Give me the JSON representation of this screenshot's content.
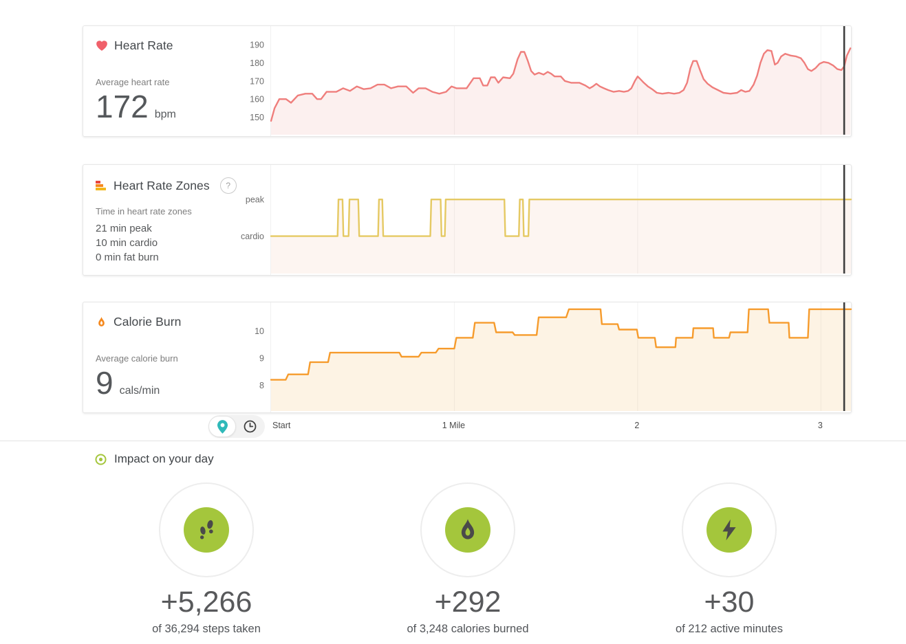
{
  "panels": {
    "heart_rate": {
      "title": "Heart Rate",
      "stat_label": "Average heart rate",
      "stat_value": "172",
      "stat_unit": "bpm"
    },
    "heart_rate_zones": {
      "title": "Heart Rate Zones",
      "help_label": "?",
      "stat_label": "Time in heart rate zones",
      "zone_lines": [
        "21 min peak",
        "10 min cardio",
        "0 min fat burn"
      ]
    },
    "calorie_burn": {
      "title": "Calorie Burn",
      "stat_label": "Average calorie burn",
      "stat_value": "9",
      "stat_unit": "cals/min"
    }
  },
  "x_axis": {
    "unit": "miles",
    "labels": [
      {
        "text": "Start",
        "mile": 0,
        "align": "left"
      },
      {
        "text": "1 Mile",
        "mile": 1
      },
      {
        "text": "2",
        "mile": 2
      },
      {
        "text": "3",
        "mile": 3
      }
    ]
  },
  "toggle": {
    "options": [
      {
        "icon": "location-pin",
        "selected": true
      },
      {
        "icon": "clock",
        "selected": false
      }
    ]
  },
  "impact": {
    "title": "Impact on your day",
    "cards": [
      {
        "icon": "footsteps",
        "delta": "+5,266",
        "caption": "of 36,294 steps taken"
      },
      {
        "icon": "flame",
        "delta": "+292",
        "caption": "of 3,248 calories burned"
      },
      {
        "icon": "bolt",
        "delta": "+30",
        "caption": "of 212 active minutes"
      }
    ]
  },
  "colors": {
    "heart_rate_line": "#ef7e7c",
    "heart_rate_fill": "#fcf0ef",
    "zones_line": "#e5c963",
    "zones_fill": "#fdf5f1",
    "calorie_line": "#f69b2c",
    "calorie_fill": "#fdf3e4",
    "accent_green": "#a4c63c",
    "pin_teal": "#2fb9b9",
    "cursor": "#3e3e3e",
    "icon_dark": "#4a4a4a"
  },
  "chart_data": [
    {
      "id": "heart-rate",
      "type": "area",
      "title": "Heart Rate (bpm) vs distance (miles)",
      "x_range": [
        0,
        3.164
      ],
      "y_range": [
        140.4,
        200.2
      ],
      "y_ticks": [
        190,
        180,
        170,
        160,
        150
      ],
      "gridlines_x": [
        1,
        2,
        3
      ],
      "cursor_x": 3.127,
      "line_color": "#ef7e7c",
      "fill_color": "#fcf0ef",
      "points": [
        [
          0,
          148
        ],
        [
          0.019,
          155
        ],
        [
          0.045,
          160
        ],
        [
          0.082,
          160
        ],
        [
          0.109,
          158
        ],
        [
          0.146,
          162
        ],
        [
          0.187,
          163
        ],
        [
          0.225,
          163
        ],
        [
          0.251,
          160
        ],
        [
          0.273,
          160
        ],
        [
          0.303,
          164
        ],
        [
          0.356,
          164
        ],
        [
          0.393,
          166
        ],
        [
          0.431,
          164.5
        ],
        [
          0.468,
          167
        ],
        [
          0.506,
          165.5
        ],
        [
          0.543,
          166
        ],
        [
          0.581,
          168
        ],
        [
          0.618,
          168
        ],
        [
          0.655,
          166
        ],
        [
          0.693,
          167
        ],
        [
          0.738,
          167
        ],
        [
          0.775,
          163.5
        ],
        [
          0.805,
          166
        ],
        [
          0.843,
          166
        ],
        [
          0.88,
          164
        ],
        [
          0.918,
          163
        ],
        [
          0.955,
          164
        ],
        [
          0.985,
          167
        ],
        [
          1.011,
          166
        ],
        [
          1.067,
          166
        ],
        [
          1.105,
          171.5
        ],
        [
          1.139,
          171.5
        ],
        [
          1.157,
          167.5
        ],
        [
          1.18,
          167.5
        ],
        [
          1.199,
          172
        ],
        [
          1.221,
          172
        ],
        [
          1.24,
          169
        ],
        [
          1.266,
          172
        ],
        [
          1.303,
          171.5
        ],
        [
          1.322,
          174
        ],
        [
          1.345,
          182
        ],
        [
          1.363,
          186
        ],
        [
          1.382,
          186
        ],
        [
          1.401,
          181
        ],
        [
          1.419,
          175.5
        ],
        [
          1.438,
          173.5
        ],
        [
          1.461,
          174.5
        ],
        [
          1.487,
          173.5
        ],
        [
          1.509,
          175
        ],
        [
          1.528,
          174
        ],
        [
          1.547,
          172.5
        ],
        [
          1.581,
          172.5
        ],
        [
          1.603,
          170
        ],
        [
          1.637,
          169
        ],
        [
          1.682,
          169
        ],
        [
          1.715,
          167.5
        ],
        [
          1.738,
          166
        ],
        [
          1.756,
          167
        ],
        [
          1.775,
          168.5
        ],
        [
          1.794,
          167
        ],
        [
          1.816,
          166
        ],
        [
          1.839,
          165
        ],
        [
          1.869,
          164
        ],
        [
          1.899,
          164.5
        ],
        [
          1.925,
          164
        ],
        [
          1.948,
          164.5
        ],
        [
          1.966,
          166
        ],
        [
          1.985,
          170
        ],
        [
          2.0,
          172.5
        ],
        [
          2.015,
          171
        ],
        [
          2.034,
          169
        ],
        [
          2.056,
          167
        ],
        [
          2.079,
          165.5
        ],
        [
          2.105,
          163.5
        ],
        [
          2.135,
          163
        ],
        [
          2.169,
          163.5
        ],
        [
          2.199,
          163
        ],
        [
          2.228,
          163.5
        ],
        [
          2.251,
          165
        ],
        [
          2.27,
          169
        ],
        [
          2.288,
          177
        ],
        [
          2.303,
          181
        ],
        [
          2.322,
          181
        ],
        [
          2.34,
          176
        ],
        [
          2.36,
          171
        ],
        [
          2.382,
          168.5
        ],
        [
          2.408,
          166.5
        ],
        [
          2.438,
          165
        ],
        [
          2.468,
          163.5
        ],
        [
          2.506,
          163
        ],
        [
          2.543,
          163.5
        ],
        [
          2.565,
          165
        ],
        [
          2.588,
          164
        ],
        [
          2.61,
          164.5
        ],
        [
          2.633,
          168
        ],
        [
          2.652,
          173
        ],
        [
          2.67,
          180
        ],
        [
          2.689,
          185
        ],
        [
          2.708,
          187
        ],
        [
          2.73,
          186.5
        ],
        [
          2.749,
          179
        ],
        [
          2.764,
          180
        ],
        [
          2.783,
          183.5
        ],
        [
          2.805,
          185
        ],
        [
          2.835,
          184
        ],
        [
          2.865,
          183.5
        ],
        [
          2.891,
          182.5
        ],
        [
          2.91,
          180
        ],
        [
          2.929,
          176.5
        ],
        [
          2.948,
          175.5
        ],
        [
          2.97,
          177
        ],
        [
          2.993,
          179.5
        ],
        [
          3.015,
          180.5
        ],
        [
          3.041,
          180
        ],
        [
          3.067,
          178.5
        ],
        [
          3.09,
          176.5
        ],
        [
          3.112,
          176
        ],
        [
          3.127,
          178
        ],
        [
          3.142,
          184
        ],
        [
          3.161,
          188
        ]
      ]
    },
    {
      "id": "heart-rate-zones",
      "type": "step",
      "title": "Heart rate zone (cardio/peak) vs distance (miles)",
      "x_range": [
        0,
        3.164
      ],
      "y_range": [
        -1.02,
        1.94
      ],
      "zone_levels": {
        "cardio": 0,
        "peak": 1
      },
      "y_tick_labels": [
        {
          "label": "peak",
          "zone": "peak"
        },
        {
          "label": "cardio",
          "zone": "cardio"
        }
      ],
      "gridlines_x": [
        1,
        2,
        3
      ],
      "cursor_x": 3.127,
      "line_color": "#e5c963",
      "fill_color": "#fdf5f1",
      "segments": [
        {
          "from": 0,
          "to": 0.363,
          "zone": "cardio"
        },
        {
          "from": 0.368,
          "to": 0.39,
          "zone": "peak"
        },
        {
          "from": 0.395,
          "to": 0.423,
          "zone": "cardio"
        },
        {
          "from": 0.428,
          "to": 0.476,
          "zone": "peak"
        },
        {
          "from": 0.481,
          "to": 0.584,
          "zone": "cardio"
        },
        {
          "from": 0.589,
          "to": 0.607,
          "zone": "peak"
        },
        {
          "from": 0.612,
          "to": 0.869,
          "zone": "cardio"
        },
        {
          "from": 0.874,
          "to": 0.925,
          "zone": "peak"
        },
        {
          "from": 0.93,
          "to": 0.948,
          "zone": "cardio"
        },
        {
          "from": 0.953,
          "to": 1.273,
          "zone": "peak"
        },
        {
          "from": 1.278,
          "to": 1.352,
          "zone": "cardio"
        },
        {
          "from": 1.357,
          "to": 1.374,
          "zone": "peak"
        },
        {
          "from": 1.379,
          "to": 1.404,
          "zone": "cardio"
        },
        {
          "from": 1.409,
          "to": 3.164,
          "zone": "peak"
        }
      ]
    },
    {
      "id": "calorie-burn",
      "type": "step",
      "title": "Calorie burn (cals/min) vs distance (miles)",
      "x_range": [
        0,
        3.164
      ],
      "y_range": [
        7.05,
        11.05
      ],
      "y_ticks": [
        10,
        9,
        8
      ],
      "gridlines_x": [
        1,
        2,
        3
      ],
      "cursor_x": 3.127,
      "line_color": "#f69b2c",
      "fill_color": "#fdf3e4",
      "segments": [
        {
          "from": 0,
          "to": 0.08,
          "v": 8.2
        },
        {
          "from": 0.094,
          "to": 0.202,
          "v": 8.4
        },
        {
          "from": 0.213,
          "to": 0.311,
          "v": 8.85
        },
        {
          "from": 0.322,
          "to": 0.7,
          "v": 9.2
        },
        {
          "from": 0.712,
          "to": 0.805,
          "v": 9.05
        },
        {
          "from": 0.82,
          "to": 0.899,
          "v": 9.2
        },
        {
          "from": 0.914,
          "to": 1.0,
          "v": 9.35
        },
        {
          "from": 1.011,
          "to": 1.101,
          "v": 9.75
        },
        {
          "from": 1.112,
          "to": 1.217,
          "v": 10.3
        },
        {
          "from": 1.228,
          "to": 1.318,
          "v": 9.95
        },
        {
          "from": 1.329,
          "to": 1.449,
          "v": 9.85
        },
        {
          "from": 1.46,
          "to": 1.61,
          "v": 10.5
        },
        {
          "from": 1.625,
          "to": 1.798,
          "v": 10.8
        },
        {
          "from": 1.805,
          "to": 1.891,
          "v": 10.25
        },
        {
          "from": 1.899,
          "to": 1.996,
          "v": 10.05
        },
        {
          "from": 2.004,
          "to": 2.094,
          "v": 9.75
        },
        {
          "from": 2.101,
          "to": 2.206,
          "v": 9.4
        },
        {
          "from": 2.21,
          "to": 2.3,
          "v": 9.75
        },
        {
          "from": 2.304,
          "to": 2.412,
          "v": 10.1
        },
        {
          "from": 2.416,
          "to": 2.499,
          "v": 9.75
        },
        {
          "from": 2.506,
          "to": 2.6,
          "v": 9.95
        },
        {
          "from": 2.607,
          "to": 2.712,
          "v": 10.8
        },
        {
          "from": 2.719,
          "to": 2.824,
          "v": 10.3
        },
        {
          "from": 2.828,
          "to": 2.929,
          "v": 9.75
        },
        {
          "from": 2.936,
          "to": 3.164,
          "v": 10.8
        }
      ]
    }
  ]
}
